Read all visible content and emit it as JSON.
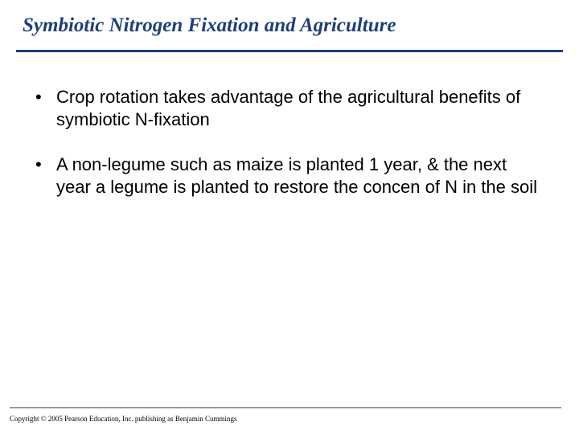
{
  "title": "Symbiotic Nitrogen Fixation and Agriculture",
  "title_color": "#1f3f7a",
  "title_fontsize": 25,
  "bullets": [
    "Crop rotation takes advantage of the agricultural benefits of symbiotic N-fixation",
    "A non-legume such as maize is planted 1 year, & the next year a legume is planted to restore the concen of N in the soil"
  ],
  "bullet_fontsize": 22,
  "bullet_color": "#000000",
  "background_color": "#ffffff",
  "rule_color": "#1f3f7a",
  "copyright": "Copyright © 2005 Pearson Education, Inc. publishing as Benjamin Cummings",
  "copyright_fontsize": 9
}
